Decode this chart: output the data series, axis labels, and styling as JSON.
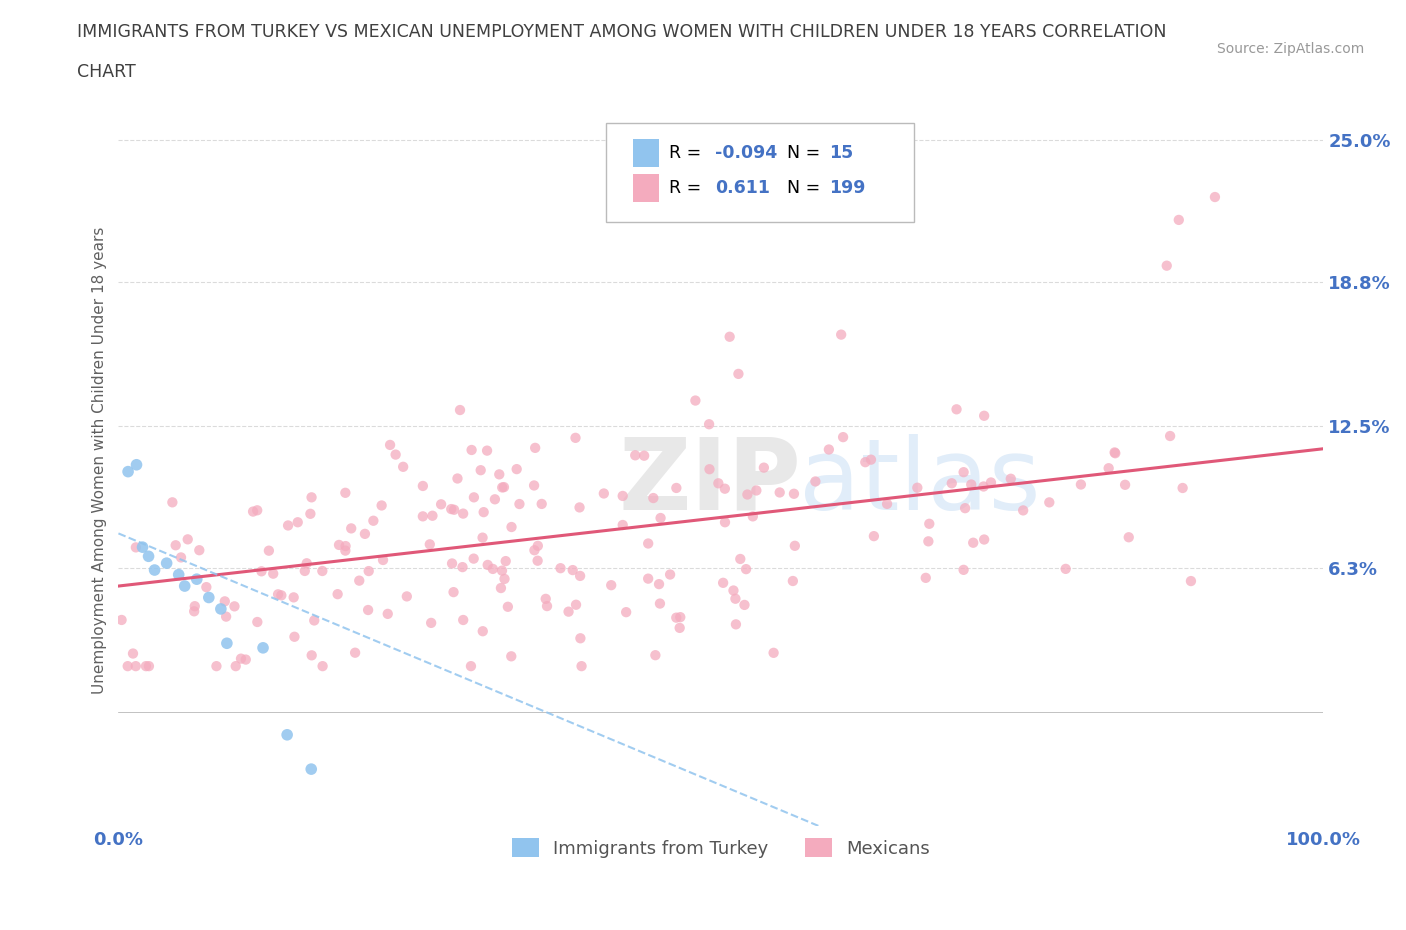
{
  "title_line1": "IMMIGRANTS FROM TURKEY VS MEXICAN UNEMPLOYMENT AMONG WOMEN WITH CHILDREN UNDER 18 YEARS CORRELATION",
  "title_line2": "CHART",
  "source_text": "Source: ZipAtlas.com",
  "watermark_zip": "ZIP",
  "watermark_atlas": "atlas",
  "xlabel": "",
  "ylabel": "Unemployment Among Women with Children Under 18 years",
  "xlim": [
    0.0,
    1.0
  ],
  "ylim": [
    -0.05,
    0.27
  ],
  "yticks": [
    0.063,
    0.125,
    0.188,
    0.25
  ],
  "ytick_labels": [
    "6.3%",
    "12.5%",
    "18.8%",
    "25.0%"
  ],
  "series1_color": "#91C4EE",
  "series2_color": "#F4ABBE",
  "series1_label": "Immigrants from Turkey",
  "series2_label": "Mexicans",
  "series1_R": -0.094,
  "series1_N": 15,
  "series2_R": 0.611,
  "series2_N": 199,
  "trend1_color": "#91C4EE",
  "trend2_color": "#E05878",
  "legend_R_color": "#4472C4",
  "background_color": "#FFFFFF",
  "grid_color": "#CCCCCC",
  "title_color": "#404040"
}
